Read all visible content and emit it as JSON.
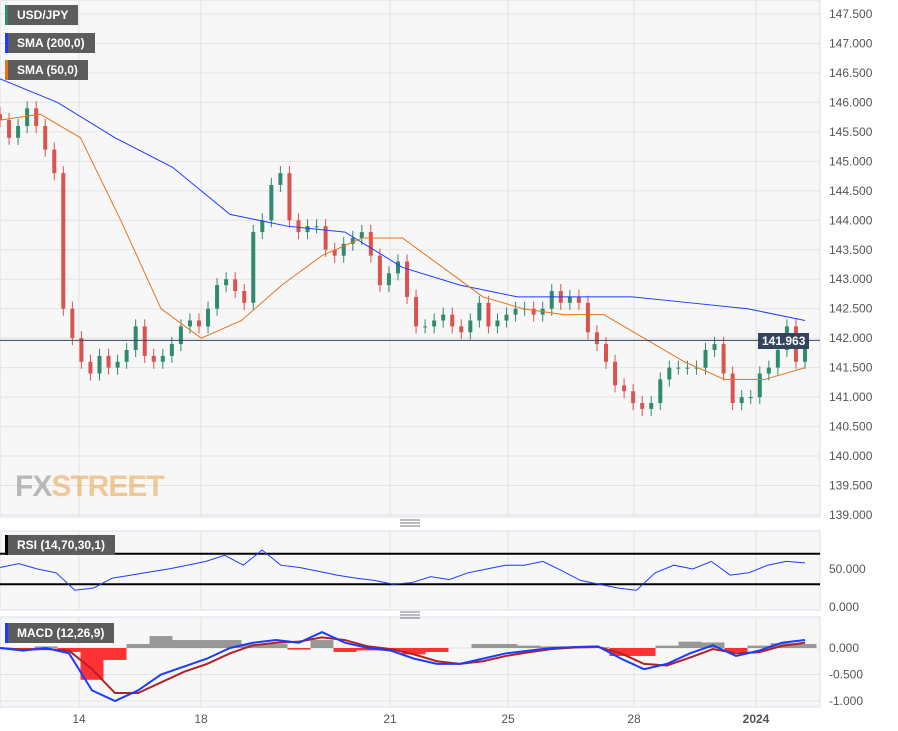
{
  "legend": {
    "price": {
      "label": "USD/JPY",
      "color": "#2e8b6e"
    },
    "sma200": {
      "label": "SMA (200,0)",
      "color": "#1a3cff"
    },
    "sma50": {
      "label": "SMA (50,0)",
      "color": "#e8731a"
    },
    "rsi": {
      "label": "RSI (14,70,30,1)"
    },
    "macd": {
      "label": "MACD (12,26,9)"
    }
  },
  "logo": {
    "text_a": "FX",
    "text_b": "STREET"
  },
  "last_price": "141.963",
  "chart_data": [
    {
      "type": "candlestick",
      "ylim": [
        139.0,
        147.5
      ],
      "yticks": [
        "147.500",
        "147.000",
        "146.500",
        "146.000",
        "145.500",
        "145.000",
        "144.500",
        "144.000",
        "143.500",
        "143.000",
        "142.500",
        "142.000",
        "141.500",
        "141.000",
        "140.500",
        "140.000",
        "139.500",
        "139.000"
      ],
      "xticks": [
        "14",
        "18",
        "21",
        "25",
        "28",
        "2024"
      ],
      "colors": {
        "up": "#2e8b6e",
        "down": "#d9534f"
      },
      "close": [
        145.7,
        145.4,
        145.6,
        145.9,
        145.6,
        145.2,
        144.8,
        142.5,
        142.0,
        141.6,
        141.4,
        141.7,
        141.5,
        141.6,
        141.8,
        142.2,
        141.7,
        141.6,
        141.7,
        141.9,
        142.2,
        142.3,
        142.2,
        142.5,
        142.9,
        143.0,
        142.8,
        142.6,
        143.8,
        144.0,
        144.6,
        144.8,
        144.0,
        143.8,
        143.9,
        143.9,
        143.5,
        143.4,
        143.6,
        143.7,
        143.8,
        143.4,
        142.9,
        143.1,
        143.3,
        142.7,
        142.2,
        142.2,
        142.3,
        142.4,
        142.2,
        142.1,
        142.3,
        142.6,
        142.2,
        142.3,
        142.4,
        142.5,
        142.5,
        142.4,
        142.5,
        142.8,
        142.6,
        142.7,
        142.6,
        142.1,
        141.9,
        141.6,
        141.2,
        141.1,
        140.9,
        140.8,
        140.9,
        141.3,
        141.5,
        141.5,
        141.5,
        141.5,
        141.8,
        141.9,
        141.4,
        140.9,
        141.0,
        141.0,
        141.4,
        141.5,
        141.8,
        142.2,
        141.6,
        141.963
      ],
      "sma200": [
        146.4,
        146.0,
        145.4,
        144.9,
        144.1,
        143.9,
        143.8,
        143.2,
        142.9,
        142.7,
        142.7,
        142.7,
        142.6,
        142.5,
        142.3
      ],
      "sma50": [
        145.7,
        145.8,
        145.4,
        144.0,
        142.5,
        142.0,
        142.3,
        142.9,
        143.4,
        143.7,
        143.7,
        143.2,
        142.7,
        142.5,
        142.4,
        142.4,
        142.0,
        141.6,
        141.3,
        141.3,
        141.5
      ]
    },
    {
      "type": "line",
      "name": "RSI",
      "ylim": [
        0,
        100
      ],
      "levels": [
        70,
        30
      ],
      "yticks": [
        "50.000",
        "0.000"
      ],
      "values": [
        52,
        57,
        50,
        45,
        22,
        25,
        38,
        42,
        46,
        50,
        55,
        60,
        68,
        55,
        75,
        55,
        52,
        47,
        42,
        38,
        35,
        30,
        32,
        40,
        36,
        45,
        50,
        55,
        55,
        60,
        48,
        35,
        30,
        25,
        22,
        45,
        55,
        50,
        60,
        42,
        45,
        55,
        60,
        58
      ]
    },
    {
      "type": "macd",
      "ylim": [
        -1.0,
        0.3
      ],
      "yticks": [
        "0.000",
        "-0.500",
        "-1.000"
      ],
      "colors": {
        "macd": "#1a3cff",
        "signal": "#b22222",
        "hist_pos": "#808080",
        "hist_neg": "#ff0000"
      },
      "macd": [
        0,
        -0.05,
        0,
        -0.1,
        -0.8,
        -1.0,
        -0.8,
        -0.5,
        -0.35,
        -0.2,
        0,
        0.1,
        0.15,
        0.1,
        0.3,
        0.1,
        0,
        -0.05,
        -0.2,
        -0.3,
        -0.3,
        -0.2,
        -0.1,
        -0.05,
        0,
        0.02,
        0.03,
        -0.2,
        -0.4,
        -0.3,
        -0.1,
        0.05,
        -0.15,
        -0.05,
        0.1,
        0.15
      ],
      "signal": [
        0,
        -0.03,
        -0.02,
        -0.05,
        -0.4,
        -0.85,
        -0.85,
        -0.65,
        -0.45,
        -0.3,
        -0.1,
        0.05,
        0.1,
        0.12,
        0.2,
        0.15,
        0.03,
        -0.02,
        -0.12,
        -0.25,
        -0.3,
        -0.25,
        -0.15,
        -0.08,
        -0.02,
        0.01,
        0.02,
        -0.1,
        -0.3,
        -0.33,
        -0.18,
        -0.02,
        -0.1,
        -0.08,
        0.04,
        0.1
      ]
    }
  ]
}
